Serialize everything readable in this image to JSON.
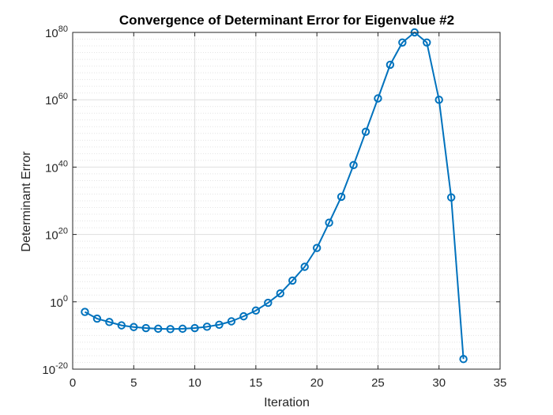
{
  "chart_data": {
    "type": "line",
    "title": "Convergence of Determinant Error for Eigenvalue #2",
    "xlabel": "Iteration",
    "ylabel": "Determinant Error",
    "xlim": [
      0,
      35
    ],
    "ylim_log10": [
      -20,
      80
    ],
    "yscale": "log",
    "grid": true,
    "minor_grid": true,
    "x_ticks": [
      0,
      5,
      10,
      15,
      20,
      25,
      30,
      35
    ],
    "y_ticks": [
      {
        "exp": -20,
        "base": "10",
        "sup": "-20"
      },
      {
        "exp": 0,
        "base": "10",
        "sup": "0"
      },
      {
        "exp": 20,
        "base": "10",
        "sup": "20"
      },
      {
        "exp": 40,
        "base": "10",
        "sup": "40"
      },
      {
        "exp": 60,
        "base": "10",
        "sup": "60"
      },
      {
        "exp": 80,
        "base": "10",
        "sup": "80"
      }
    ],
    "series": [
      {
        "color": "#0072BD",
        "marker": "circle",
        "x": [
          1,
          2,
          3,
          4,
          5,
          6,
          7,
          8,
          9,
          10,
          11,
          12,
          13,
          14,
          15,
          16,
          17,
          18,
          19,
          20,
          21,
          22,
          23,
          24,
          25,
          26,
          27,
          28,
          29,
          30,
          31,
          32
        ],
        "log10_y": [
          -3,
          -5,
          -6,
          -7,
          -7.5,
          -7.8,
          -8,
          -8.1,
          -8,
          -7.8,
          -7.4,
          -6.8,
          -5.8,
          -4.3,
          -2.6,
          -0.3,
          2.5,
          6.3,
          10.4,
          16,
          23.5,
          31.2,
          40.6,
          50.5,
          60.4,
          70.4,
          77,
          80,
          77,
          60,
          31,
          -17
        ]
      }
    ]
  }
}
